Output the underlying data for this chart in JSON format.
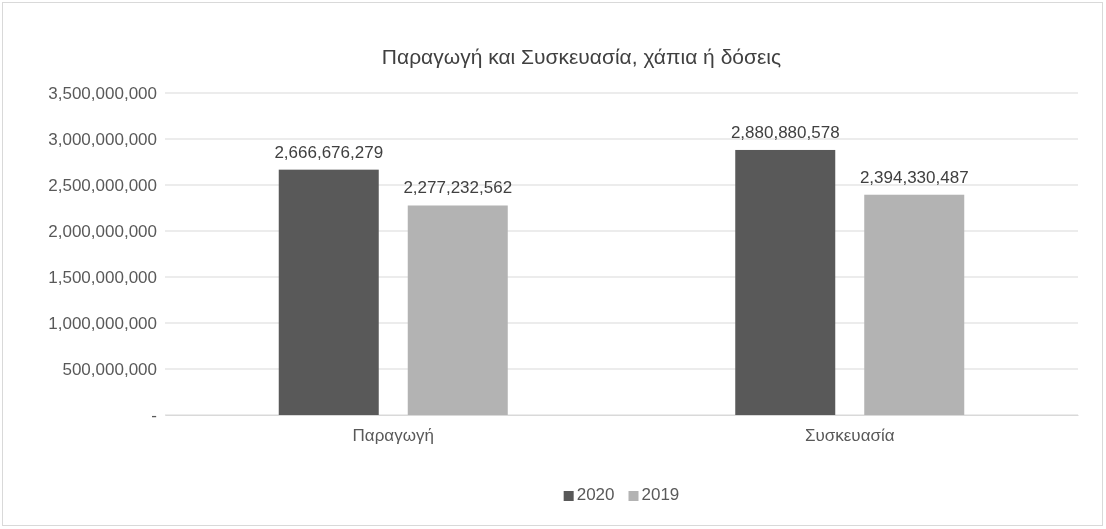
{
  "chart_data": {
    "type": "bar",
    "title": "Παραγωγή και Συσκευασία, χάπια ή δόσεις",
    "categories": [
      "Παραγωγή",
      "Συσκευασία"
    ],
    "series": [
      {
        "name": "2020",
        "color": "#595959",
        "values": [
          2666676279,
          2880880578
        ],
        "value_labels": [
          "2,666,676,279",
          "2,880,880,578"
        ]
      },
      {
        "name": "2019",
        "color": "#b3b3b3",
        "values": [
          2277232562,
          2394330487
        ],
        "value_labels": [
          "2,277,232,562",
          "2,394,330,487"
        ]
      }
    ],
    "ylim": [
      0,
      3500000000
    ],
    "yticks": [
      {
        "value": 0,
        "label": "-"
      },
      {
        "value": 500000000,
        "label": "500,000,000"
      },
      {
        "value": 1000000000,
        "label": "1,000,000,000"
      },
      {
        "value": 1500000000,
        "label": "1,500,000,000"
      },
      {
        "value": 2000000000,
        "label": "2,000,000,000"
      },
      {
        "value": 2500000000,
        "label": "2,500,000,000"
      },
      {
        "value": 3000000000,
        "label": "3,000,000,000"
      },
      {
        "value": 3500000000,
        "label": "3,500,000,000"
      }
    ],
    "grid": "y",
    "legend": "bottom"
  }
}
